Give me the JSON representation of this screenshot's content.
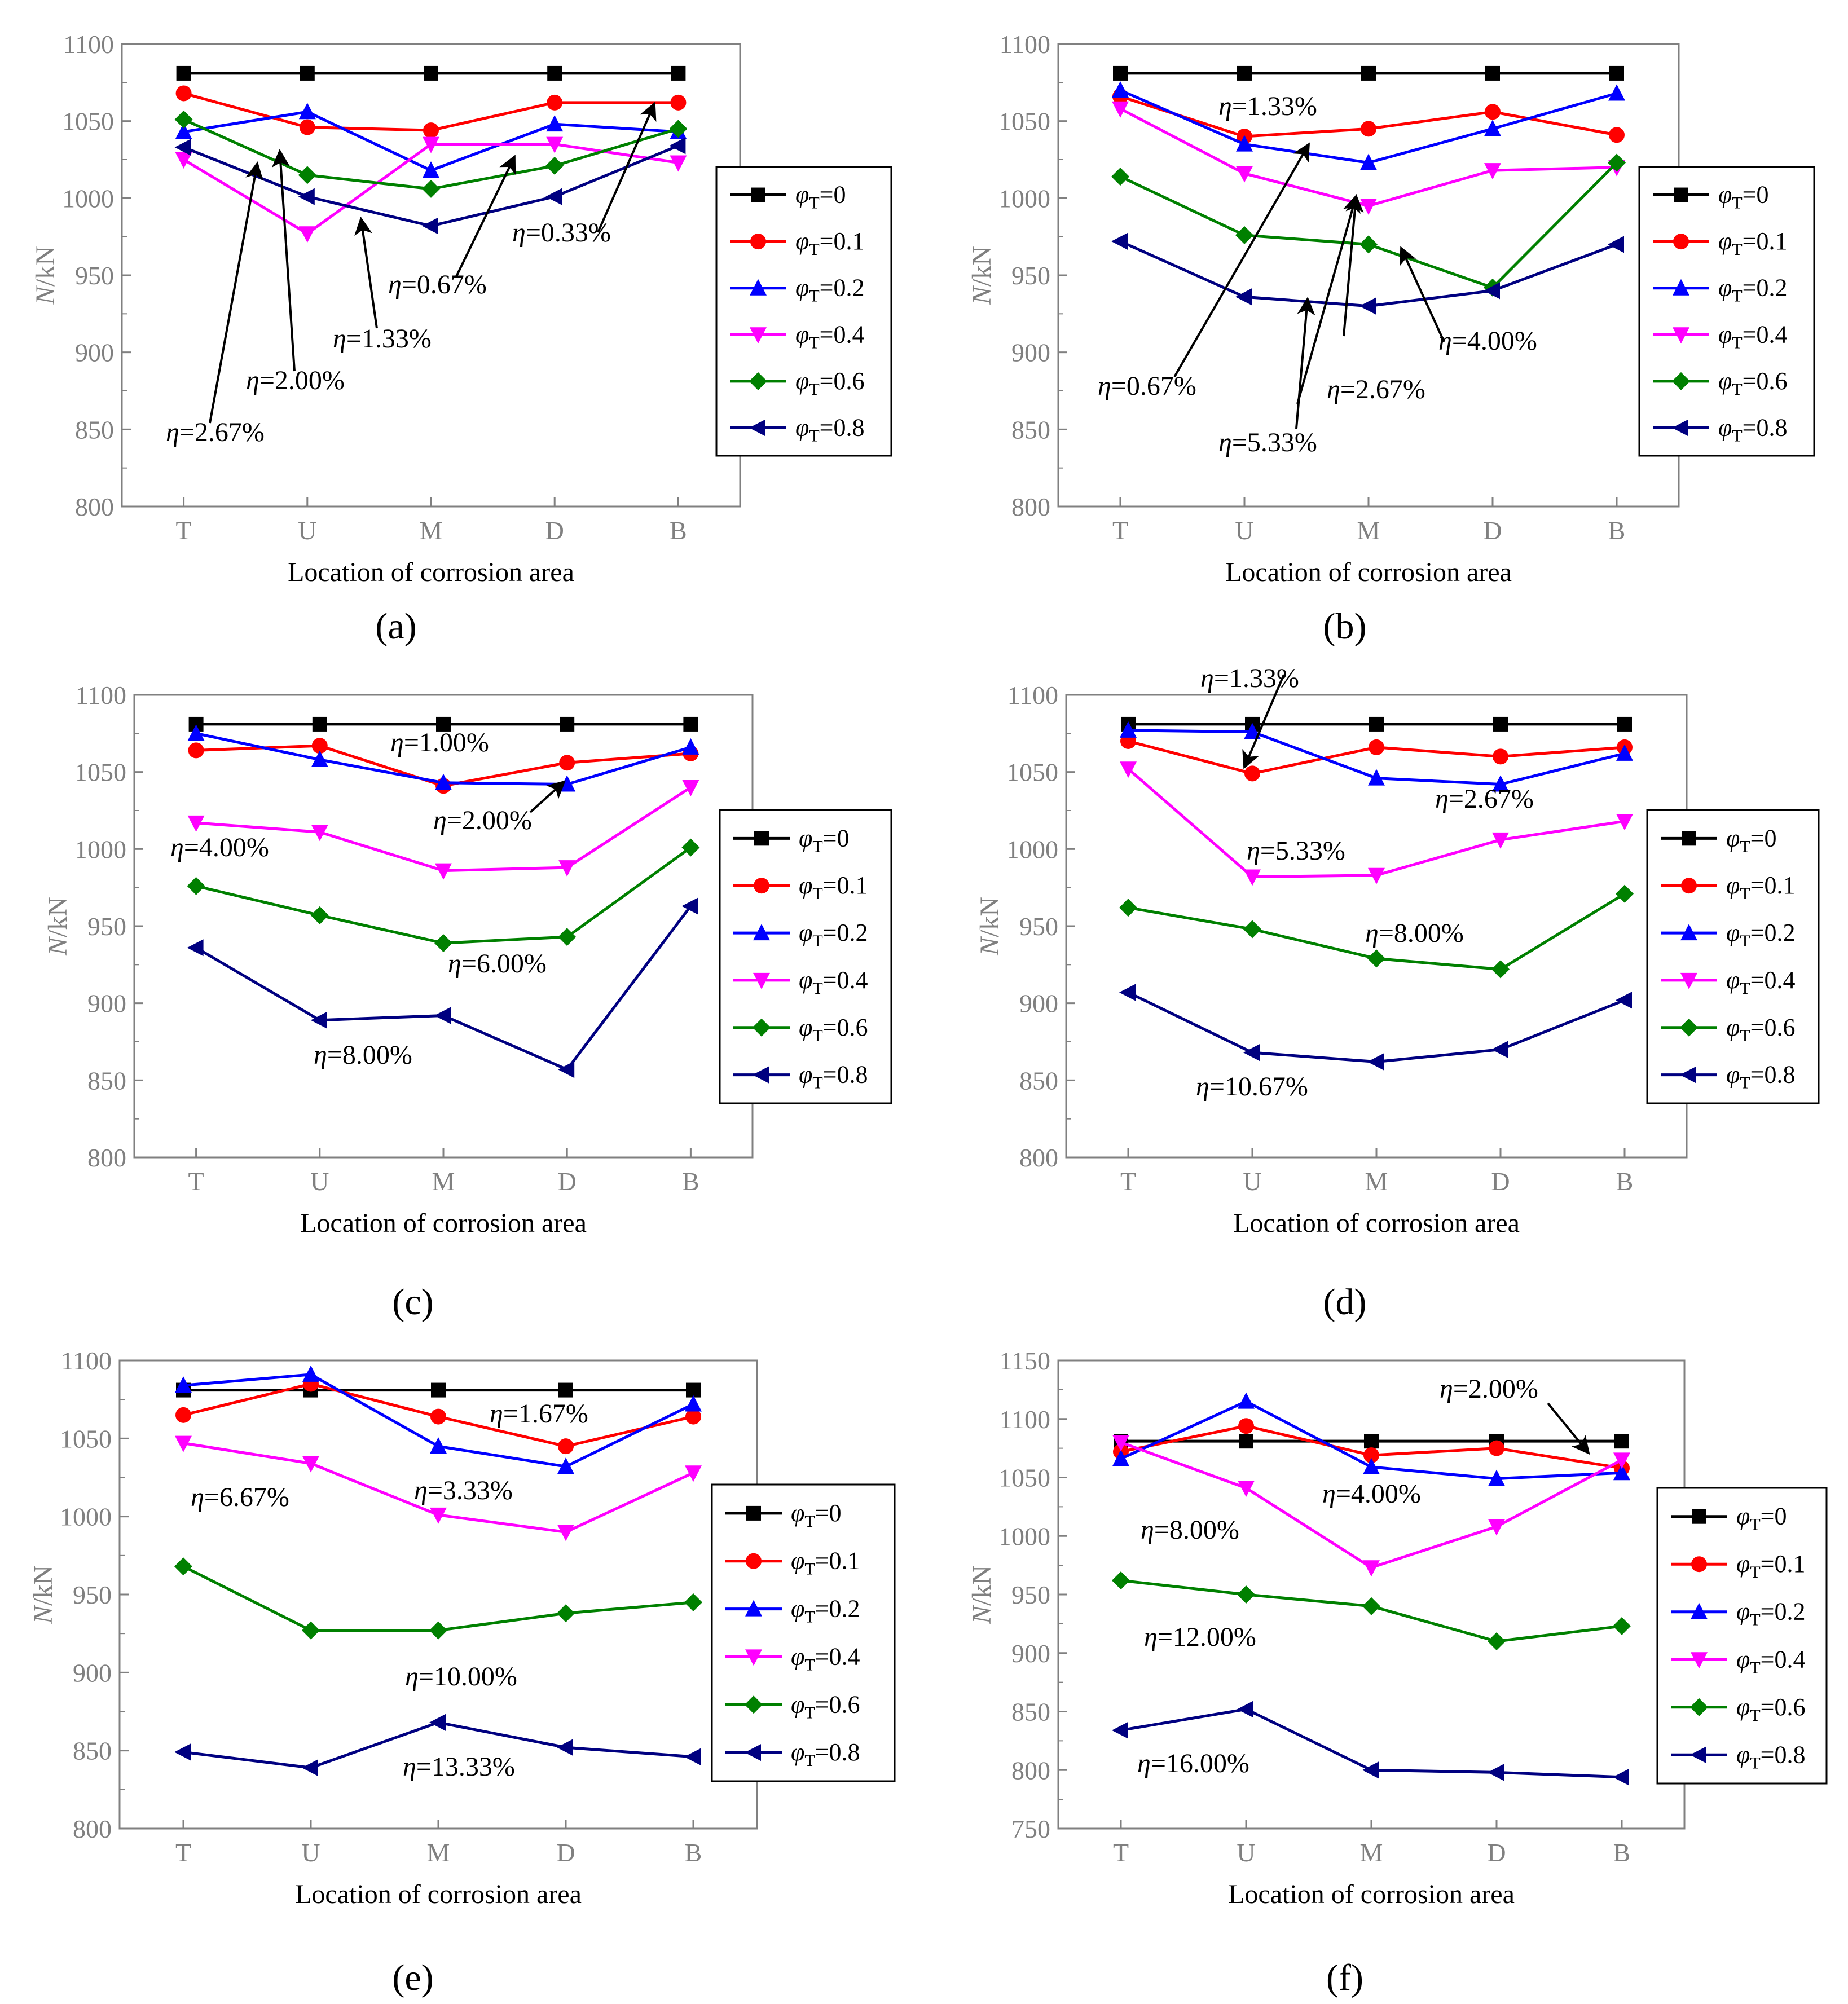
{
  "legend_entries": [
    "φT=0",
    "φT=0.1",
    "φT=0.2",
    "φT=0.4",
    "φT=0.6",
    "φT=0.8"
  ],
  "chart_data": [
    {
      "type": "line",
      "panel": "a",
      "panel_label": "(a)",
      "categories": [
        "T",
        "U",
        "M",
        "D",
        "B"
      ],
      "xlabel": "Location of corrosion area",
      "ylabel": "N/kN",
      "ylim": [
        800,
        1100
      ],
      "yticks": [
        800,
        850,
        900,
        950,
        1000,
        1050,
        1100
      ],
      "legend_position": "right",
      "series": [
        {
          "name": "φT=0",
          "color": "#000000",
          "marker": "square",
          "values": [
            1081,
            1081,
            1081,
            1081,
            1081
          ]
        },
        {
          "name": "φT=0.1",
          "color": "#ff0000",
          "marker": "circle",
          "values": [
            1068,
            1046,
            1044,
            1062,
            1062
          ]
        },
        {
          "name": "φT=0.2",
          "color": "#0000ff",
          "marker": "triangle-up",
          "values": [
            1043,
            1056,
            1018,
            1048,
            1043
          ]
        },
        {
          "name": "φT=0.4",
          "color": "#ff00ff",
          "marker": "triangle-down",
          "values": [
            1025,
            977,
            1035,
            1035,
            1023
          ]
        },
        {
          "name": "φT=0.6",
          "color": "#008000",
          "marker": "diamond",
          "values": [
            1051,
            1015,
            1006,
            1021,
            1045
          ]
        },
        {
          "name": "φT=0.8",
          "color": "#000080",
          "marker": "triangle-left",
          "values": [
            1033,
            1001,
            982,
            1001,
            1034
          ]
        }
      ],
      "annotations": [
        "η=2.67%",
        "η=2.00%",
        "η=1.33%",
        "η=0.67%",
        "η=0.33%"
      ]
    },
    {
      "type": "line",
      "panel": "b",
      "panel_label": "(b)",
      "categories": [
        "T",
        "U",
        "M",
        "D",
        "B"
      ],
      "xlabel": "Location of corrosion area",
      "ylabel": "N/kN",
      "ylim": [
        800,
        1100
      ],
      "yticks": [
        800,
        850,
        900,
        950,
        1000,
        1050,
        1100
      ],
      "legend_position": "right",
      "series": [
        {
          "name": "φT=0",
          "color": "#000000",
          "marker": "square",
          "values": [
            1081,
            1081,
            1081,
            1081,
            1081
          ]
        },
        {
          "name": "φT=0.1",
          "color": "#ff0000",
          "marker": "circle",
          "values": [
            1066,
            1040,
            1045,
            1056,
            1041
          ]
        },
        {
          "name": "φT=0.2",
          "color": "#0000ff",
          "marker": "triangle-up",
          "values": [
            1070,
            1035,
            1023,
            1045,
            1068
          ]
        },
        {
          "name": "φT=0.4",
          "color": "#ff00ff",
          "marker": "triangle-down",
          "values": [
            1058,
            1016,
            995,
            1018,
            1020
          ]
        },
        {
          "name": "φT=0.6",
          "color": "#008000",
          "marker": "diamond",
          "values": [
            1014,
            976,
            970,
            942,
            1023
          ]
        },
        {
          "name": "φT=0.8",
          "color": "#000080",
          "marker": "triangle-left",
          "values": [
            972,
            936,
            930,
            940,
            970
          ]
        }
      ],
      "annotations": [
        "η=0.67%",
        "η=1.33%",
        "η=5.33%",
        "η=2.67%",
        "η=4.00%"
      ]
    },
    {
      "type": "line",
      "panel": "c",
      "panel_label": "(c)",
      "categories": [
        "T",
        "U",
        "M",
        "D",
        "B"
      ],
      "xlabel": "Location of corrosion area",
      "ylabel": "N/kN",
      "ylim": [
        800,
        1100
      ],
      "yticks": [
        800,
        850,
        900,
        950,
        1000,
        1050,
        1100
      ],
      "legend_position": "right",
      "series": [
        {
          "name": "φT=0",
          "color": "#000000",
          "marker": "square",
          "values": [
            1081,
            1081,
            1081,
            1081,
            1081
          ]
        },
        {
          "name": "φT=0.1",
          "color": "#ff0000",
          "marker": "circle",
          "values": [
            1064,
            1067,
            1041,
            1056,
            1062
          ]
        },
        {
          "name": "φT=0.2",
          "color": "#0000ff",
          "marker": "triangle-up",
          "values": [
            1075,
            1058,
            1043,
            1042,
            1066
          ]
        },
        {
          "name": "φT=0.4",
          "color": "#ff00ff",
          "marker": "triangle-down",
          "values": [
            1017,
            1011,
            986,
            988,
            1040
          ]
        },
        {
          "name": "φT=0.6",
          "color": "#008000",
          "marker": "diamond",
          "values": [
            976,
            957,
            939,
            943,
            1001
          ]
        },
        {
          "name": "φT=0.8",
          "color": "#000080",
          "marker": "triangle-left",
          "values": [
            936,
            889,
            892,
            857,
            963
          ]
        }
      ],
      "annotations": [
        "η=1.00%",
        "η=2.00%",
        "η=4.00%",
        "η=6.00%",
        "η=8.00%"
      ]
    },
    {
      "type": "line",
      "panel": "d",
      "panel_label": "(d)",
      "categories": [
        "T",
        "U",
        "M",
        "D",
        "B"
      ],
      "xlabel": "Location of corrosion area",
      "ylabel": "N/kN",
      "ylim": [
        800,
        1100
      ],
      "yticks": [
        800,
        850,
        900,
        950,
        1000,
        1050,
        1100
      ],
      "legend_position": "right",
      "series": [
        {
          "name": "φT=0",
          "color": "#000000",
          "marker": "square",
          "values": [
            1081,
            1081,
            1081,
            1081,
            1081
          ]
        },
        {
          "name": "φT=0.1",
          "color": "#ff0000",
          "marker": "circle",
          "values": [
            1070,
            1049,
            1066,
            1060,
            1066
          ]
        },
        {
          "name": "φT=0.2",
          "color": "#0000ff",
          "marker": "triangle-up",
          "values": [
            1077,
            1076,
            1046,
            1042,
            1062
          ]
        },
        {
          "name": "φT=0.4",
          "color": "#ff00ff",
          "marker": "triangle-down",
          "values": [
            1052,
            982,
            983,
            1006,
            1018
          ]
        },
        {
          "name": "φT=0.6",
          "color": "#008000",
          "marker": "diamond",
          "values": [
            962,
            948,
            929,
            922,
            971
          ]
        },
        {
          "name": "φT=0.8",
          "color": "#000080",
          "marker": "triangle-left",
          "values": [
            907,
            868,
            862,
            870,
            902
          ]
        }
      ],
      "annotations": [
        "η=1.33%",
        "η=2.67%",
        "η=5.33%",
        "η=8.00%",
        "η=10.67%"
      ]
    },
    {
      "type": "line",
      "panel": "e",
      "panel_label": "(e)",
      "categories": [
        "T",
        "U",
        "M",
        "D",
        "B"
      ],
      "xlabel": "Location of corrosion area",
      "ylabel": "N/kN",
      "ylim": [
        800,
        1100
      ],
      "yticks": [
        800,
        850,
        900,
        950,
        1000,
        1050,
        1100
      ],
      "legend_position": "right",
      "series": [
        {
          "name": "φT=0",
          "color": "#000000",
          "marker": "square",
          "values": [
            1081,
            1081,
            1081,
            1081,
            1081
          ]
        },
        {
          "name": "φT=0.1",
          "color": "#ff0000",
          "marker": "circle",
          "values": [
            1065,
            1085,
            1064,
            1045,
            1064
          ]
        },
        {
          "name": "φT=0.2",
          "color": "#0000ff",
          "marker": "triangle-up",
          "values": [
            1084,
            1091,
            1045,
            1032,
            1072
          ]
        },
        {
          "name": "φT=0.4",
          "color": "#ff00ff",
          "marker": "triangle-down",
          "values": [
            1047,
            1034,
            1001,
            990,
            1028
          ]
        },
        {
          "name": "φT=0.6",
          "color": "#008000",
          "marker": "diamond",
          "values": [
            968,
            927,
            927,
            938,
            945
          ]
        },
        {
          "name": "φT=0.8",
          "color": "#000080",
          "marker": "triangle-left",
          "values": [
            849,
            839,
            868,
            852,
            846
          ]
        }
      ],
      "annotations": [
        "η=1.67%",
        "η=3.33%",
        "η=6.67%",
        "η=10.00%",
        "η=13.33%"
      ]
    },
    {
      "type": "line",
      "panel": "f",
      "panel_label": "(f)",
      "categories": [
        "T",
        "U",
        "M",
        "D",
        "B"
      ],
      "xlabel": "Location of corrosion area",
      "ylabel": "N/kN",
      "ylim": [
        750,
        1150
      ],
      "yticks": [
        750,
        800,
        850,
        900,
        950,
        1000,
        1050,
        1100,
        1150
      ],
      "legend_position": "right",
      "series": [
        {
          "name": "φT=0",
          "color": "#000000",
          "marker": "square",
          "values": [
            1081,
            1081,
            1081,
            1081,
            1081
          ]
        },
        {
          "name": "φT=0.1",
          "color": "#ff0000",
          "marker": "circle",
          "values": [
            1072,
            1094,
            1069,
            1075,
            1058
          ]
        },
        {
          "name": "φT=0.2",
          "color": "#0000ff",
          "marker": "triangle-up",
          "values": [
            1066,
            1115,
            1059,
            1049,
            1054
          ]
        },
        {
          "name": "φT=0.4",
          "color": "#ff00ff",
          "marker": "triangle-down",
          "values": [
            1080,
            1041,
            973,
            1008,
            1065
          ]
        },
        {
          "name": "φT=0.6",
          "color": "#008000",
          "marker": "diamond",
          "values": [
            962,
            950,
            940,
            910,
            923
          ]
        },
        {
          "name": "φT=0.8",
          "color": "#000080",
          "marker": "triangle-left",
          "values": [
            834,
            852,
            800,
            798,
            794
          ]
        }
      ],
      "annotations": [
        "η=2.00%",
        "η=4.00%",
        "η=8.00%",
        "η=12.00%",
        "η=16.00%"
      ]
    }
  ]
}
